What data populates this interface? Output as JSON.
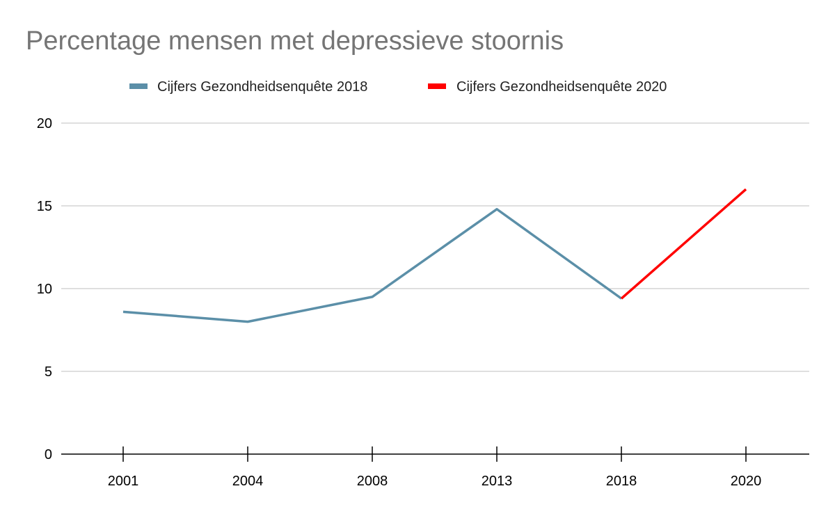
{
  "chart_data": {
    "type": "line",
    "title": "Percentage mensen met depressieve stoornis",
    "xlabel": "",
    "ylabel": "",
    "categories": [
      "2001",
      "2004",
      "2008",
      "2013",
      "2018",
      "2020"
    ],
    "ylim": [
      0,
      20
    ],
    "yticks": [
      0,
      5,
      10,
      15,
      20
    ],
    "grid": true,
    "legend_position": "top",
    "series": [
      {
        "name": "Cijfers Gezondheidsenquête 2018",
        "color": "#5b8fa8",
        "values": [
          8.6,
          8.0,
          9.5,
          14.8,
          9.4,
          null
        ]
      },
      {
        "name": "Cijfers Gezondheidsenquête 2020",
        "color": "#ff0000",
        "values": [
          null,
          null,
          null,
          null,
          9.4,
          16.0
        ]
      }
    ]
  }
}
